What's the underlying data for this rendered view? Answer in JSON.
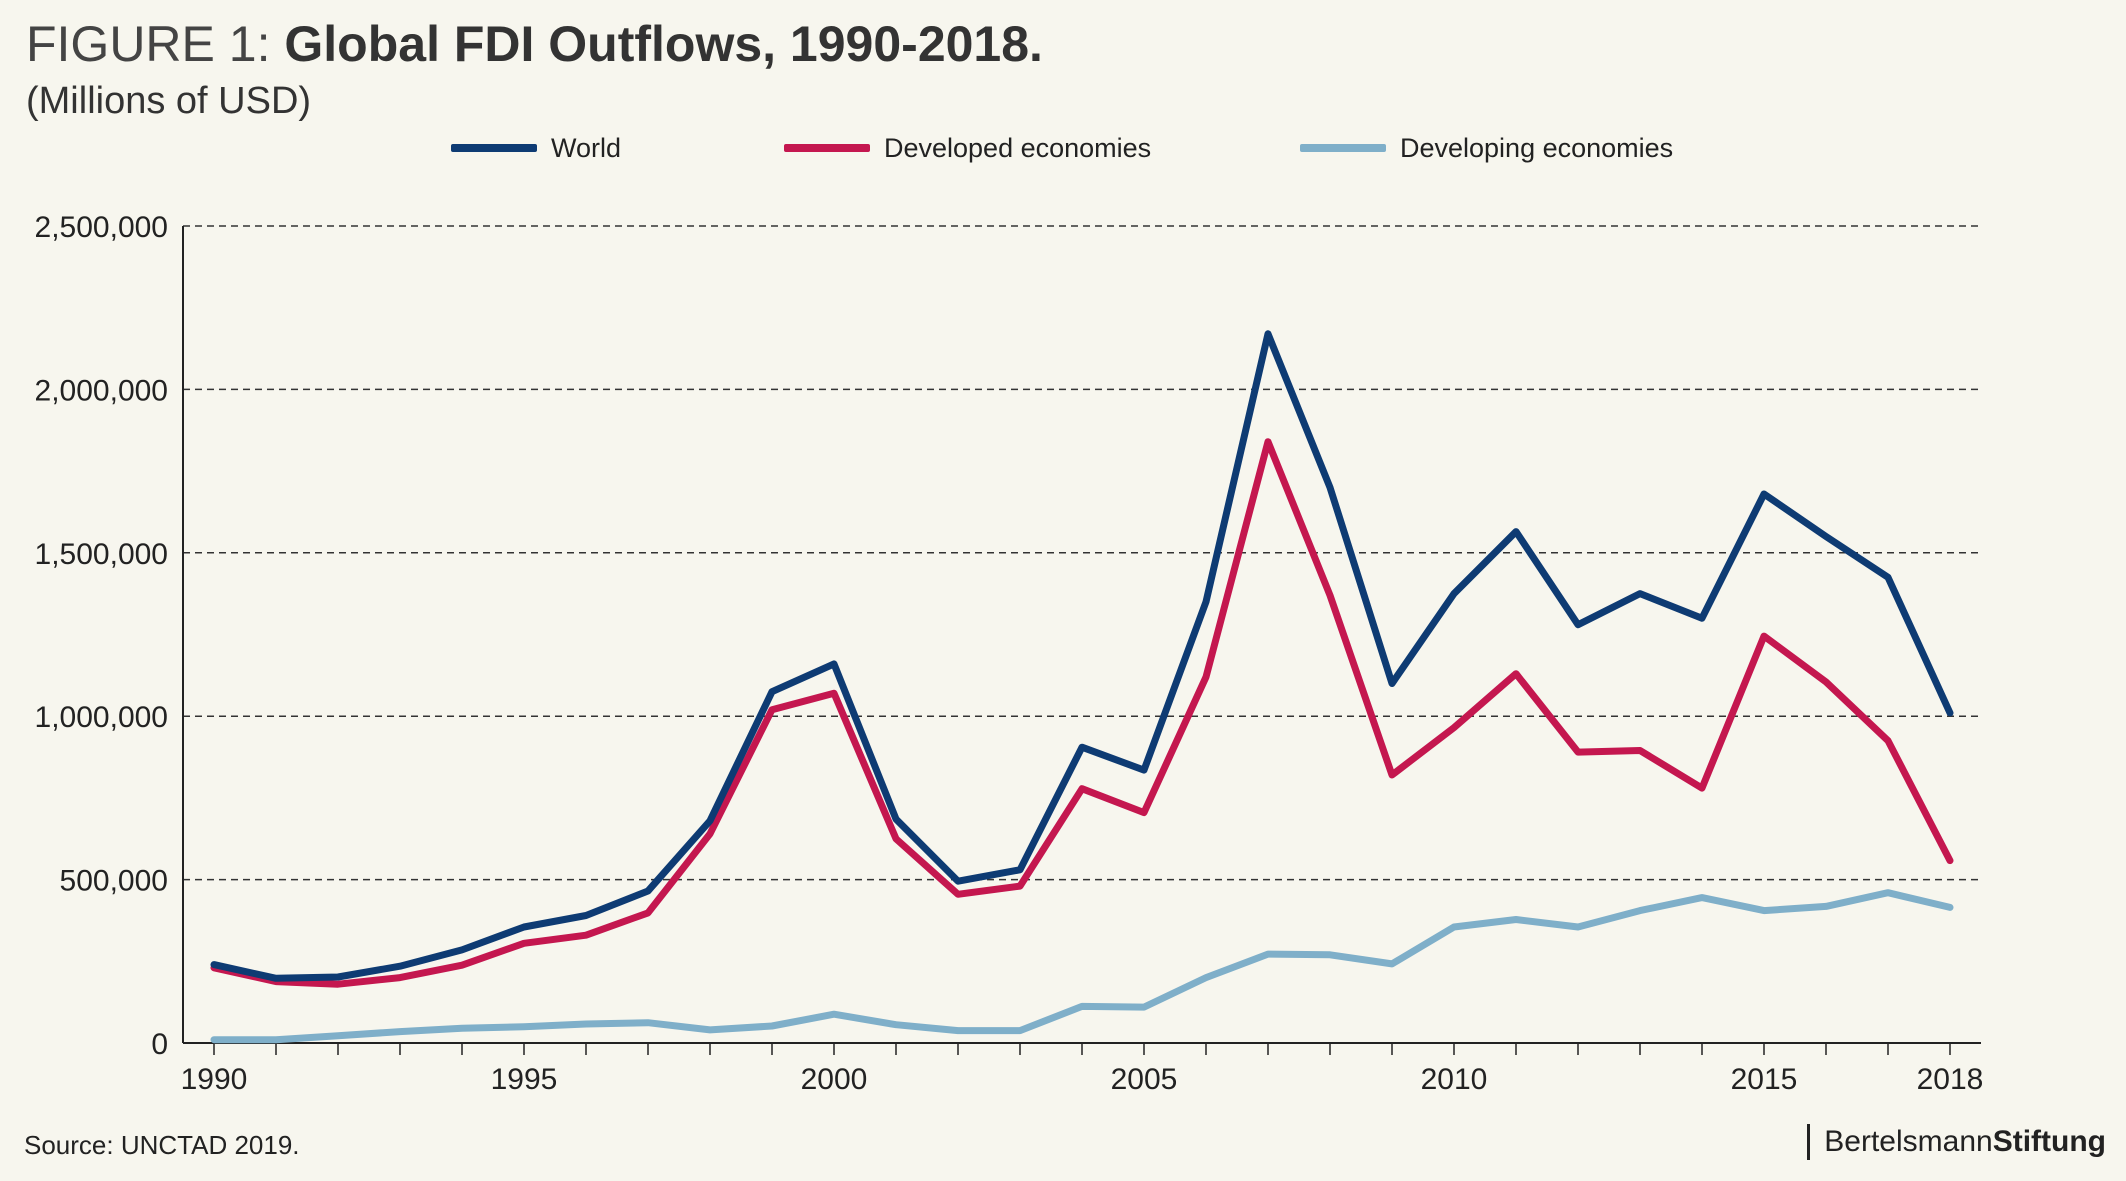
{
  "header": {
    "title_prefix": "FIGURE 1:",
    "title_main": "Global FDI Outflows, 1990-2018.",
    "subtitle": "(Millions of USD)"
  },
  "footer": {
    "source": "Source: UNCTAD 2019.",
    "brand_part1": "Bertelsmann",
    "brand_part2": "Stiftung"
  },
  "colors": {
    "background": "#f7f6ee",
    "world": "#0e3b73",
    "developed": "#c4174f",
    "developing": "#7fafc9",
    "grid": "#333333",
    "axis": "#222222"
  },
  "chart_data": {
    "type": "line",
    "title": "Global FDI Outflows, 1990-2018.",
    "subtitle": "(Millions of USD)",
    "xlabel": "",
    "ylabel": "",
    "x": [
      1990,
      1991,
      1992,
      1993,
      1994,
      1995,
      1996,
      1997,
      1998,
      1999,
      2000,
      2001,
      2002,
      2003,
      2004,
      2005,
      2006,
      2007,
      2008,
      2009,
      2010,
      2011,
      2012,
      2013,
      2014,
      2015,
      2016,
      2017,
      2018
    ],
    "xlim": [
      1990,
      2018.5
    ],
    "ylim": [
      0,
      2500000
    ],
    "x_ticks": [
      1990,
      1995,
      2000,
      2005,
      2010,
      2015,
      2018
    ],
    "y_ticks": [
      0,
      500000,
      1000000,
      1500000,
      2000000,
      2500000
    ],
    "x_tick_labels": [
      "1990",
      "1995",
      "2000",
      "2005",
      "2010",
      "2015",
      "2018"
    ],
    "y_tick_labels": [
      "0",
      "500,000",
      "1,000,000",
      "1,500,000",
      "2,000,000",
      "2,500,000"
    ],
    "grid": "horizontal dashed",
    "legend_position": "top",
    "series": [
      {
        "name": "World",
        "color": "#0e3b73",
        "values": [
          240000,
          198000,
          202000,
          235000,
          285000,
          355000,
          390000,
          465000,
          680000,
          1075000,
          1160000,
          685000,
          495000,
          530000,
          905000,
          835000,
          1350000,
          2170000,
          1700000,
          1100000,
          1375000,
          1565000,
          1280000,
          1375000,
          1300000,
          1680000,
          1550000,
          1425000,
          1010000
        ]
      },
      {
        "name": "Developed economies",
        "color": "#c4174f",
        "values": [
          230000,
          188000,
          180000,
          200000,
          238000,
          305000,
          330000,
          398000,
          640000,
          1020000,
          1070000,
          625000,
          455000,
          480000,
          778000,
          705000,
          1120000,
          1840000,
          1370000,
          820000,
          965000,
          1130000,
          890000,
          895000,
          780000,
          1245000,
          1105000,
          925000,
          558000
        ]
      },
      {
        "name": "Developing economies",
        "color": "#7fafc9",
        "values": [
          10000,
          10000,
          22000,
          35000,
          45000,
          50000,
          58000,
          62000,
          40000,
          52000,
          88000,
          56000,
          38000,
          38000,
          112000,
          110000,
          200000,
          272000,
          270000,
          242000,
          355000,
          378000,
          355000,
          405000,
          445000,
          405000,
          418000,
          460000,
          415000
        ]
      }
    ]
  }
}
